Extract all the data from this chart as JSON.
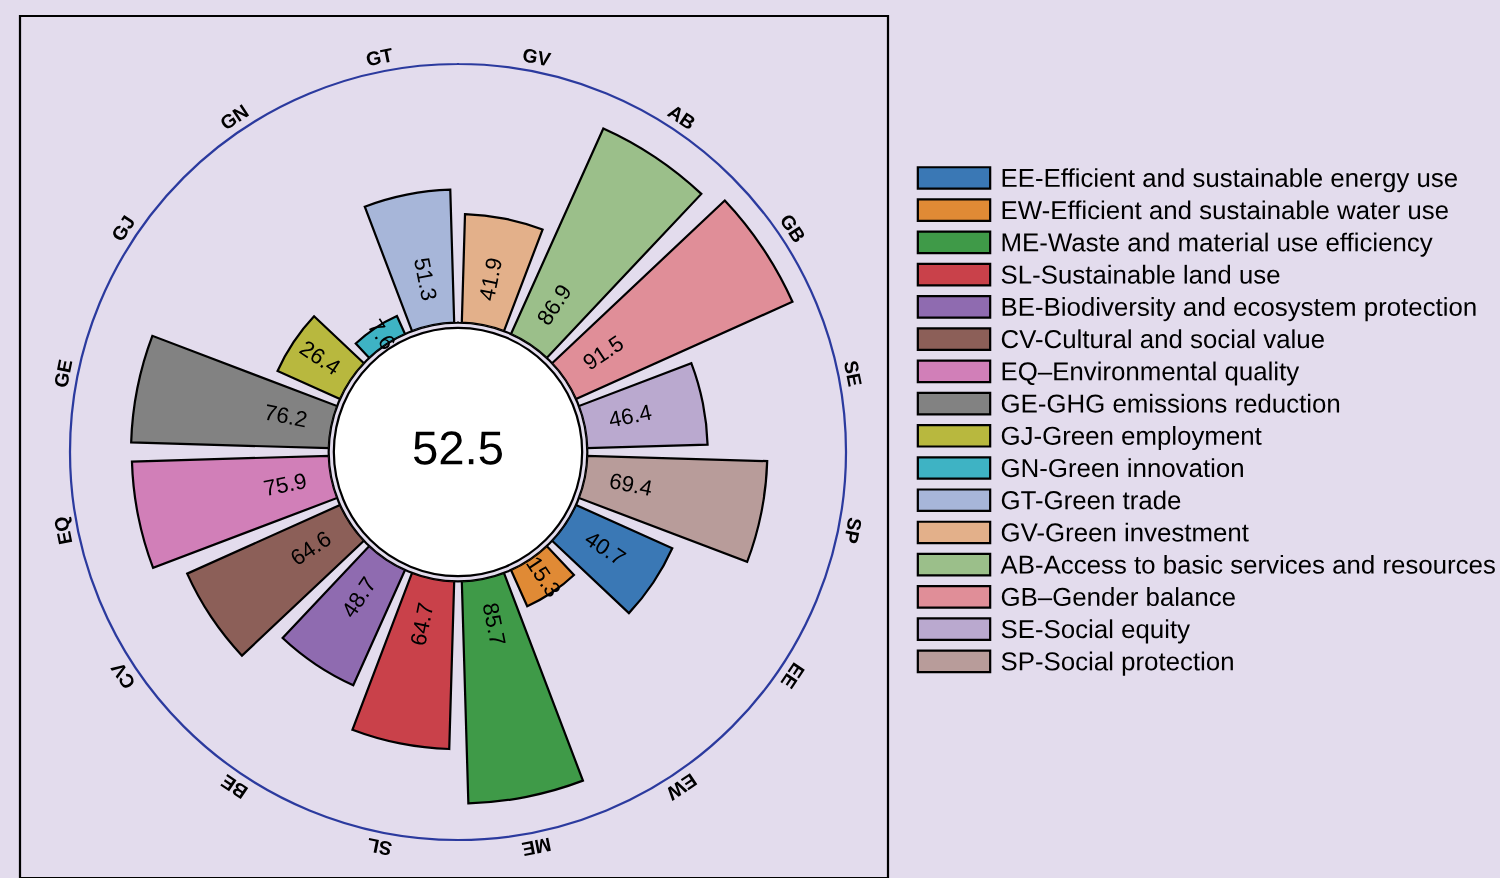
{
  "chart_data": {
    "type": "other",
    "categories": [
      "EE",
      "EW",
      "ME",
      "SL",
      "BE",
      "CV",
      "EQ",
      "GE",
      "GJ",
      "GN",
      "GT",
      "GV",
      "AB",
      "GB",
      "SE",
      "SP"
    ],
    "series": [
      {
        "name": "EE-Efficient and sustainable energy use",
        "color": "#3a78b5",
        "values": [
          40.7,
          null,
          null,
          null,
          null,
          null,
          null,
          null,
          null,
          null,
          null,
          null,
          null,
          null,
          null,
          null
        ]
      },
      {
        "name": "EW-Efficient and sustainable water use",
        "color": "#e08a35",
        "values": [
          null,
          15.3,
          null,
          null,
          null,
          null,
          null,
          null,
          null,
          null,
          null,
          null,
          null,
          null,
          null,
          null
        ]
      },
      {
        "name": "ME-Waste and material use efficiency",
        "color": "#3f9a48",
        "values": [
          null,
          null,
          85.7,
          null,
          null,
          null,
          null,
          null,
          null,
          null,
          null,
          null,
          null,
          null,
          null,
          null
        ]
      },
      {
        "name": "SL-Sustainable land use",
        "color": "#c9414a",
        "values": [
          null,
          null,
          null,
          64.7,
          null,
          null,
          null,
          null,
          null,
          null,
          null,
          null,
          null,
          null,
          null,
          null
        ]
      },
      {
        "name": "BE-Biodiversity and ecosystem protection",
        "color": "#8f6bb0",
        "values": [
          null,
          null,
          null,
          null,
          48.7,
          null,
          null,
          null,
          null,
          null,
          null,
          null,
          null,
          null,
          null,
          null
        ]
      },
      {
        "name": "CV-Cultural and social value",
        "color": "#8c5f58",
        "values": [
          null,
          null,
          null,
          null,
          null,
          64.6,
          null,
          null,
          null,
          null,
          null,
          null,
          null,
          null,
          null,
          null
        ]
      },
      {
        "name": "EQ–Environmental quality",
        "color": "#d17fb8",
        "values": [
          null,
          null,
          null,
          null,
          null,
          null,
          75.9,
          null,
          null,
          null,
          null,
          null,
          null,
          null,
          null,
          null
        ]
      },
      {
        "name": "GE-GHG emissions reduction",
        "color": "#828282",
        "values": [
          null,
          null,
          null,
          null,
          null,
          null,
          null,
          76.2,
          null,
          null,
          null,
          null,
          null,
          null,
          null,
          null
        ]
      },
      {
        "name": "GJ-Green employment",
        "color": "#b8b83e",
        "values": [
          null,
          null,
          null,
          null,
          null,
          null,
          null,
          null,
          26.4,
          null,
          null,
          null,
          null,
          null,
          null,
          null
        ]
      },
      {
        "name": "GN-Green innovation",
        "color": "#3eb3c4",
        "values": [
          null,
          null,
          null,
          null,
          null,
          null,
          null,
          null,
          null,
          7.6,
          null,
          null,
          null,
          null,
          null,
          null
        ]
      },
      {
        "name": "GT-Green trade",
        "color": "#a7b6d9",
        "values": [
          null,
          null,
          null,
          null,
          null,
          null,
          null,
          null,
          null,
          null,
          51.3,
          null,
          null,
          null,
          null,
          null
        ]
      },
      {
        "name": "GV-Green investment",
        "color": "#e3b08a",
        "values": [
          null,
          null,
          null,
          null,
          null,
          null,
          null,
          null,
          null,
          null,
          null,
          41.9,
          null,
          null,
          null,
          null
        ]
      },
      {
        "name": "AB-Access to basic services and resources",
        "color": "#9bbf8a",
        "values": [
          null,
          null,
          null,
          null,
          null,
          null,
          null,
          null,
          null,
          null,
          null,
          null,
          86.9,
          null,
          null,
          null
        ]
      },
      {
        "name": "GB–Gender balance",
        "color": "#e08e98",
        "values": [
          null,
          null,
          null,
          null,
          null,
          null,
          null,
          null,
          null,
          null,
          null,
          null,
          null,
          91.5,
          null,
          null
        ]
      },
      {
        "name": "SE-Social equity",
        "color": "#baa9cf",
        "values": [
          null,
          null,
          null,
          null,
          null,
          null,
          null,
          null,
          null,
          null,
          null,
          null,
          null,
          null,
          46.4,
          null
        ]
      },
      {
        "name": "SP-Social protection",
        "color": "#b89c9a",
        "values": [
          null,
          null,
          null,
          null,
          null,
          null,
          null,
          null,
          null,
          null,
          null,
          null,
          null,
          null,
          null,
          69.4
        ]
      }
    ],
    "data_labels": true,
    "legend": "right",
    "annotations": [
      "52.5"
    ]
  }
}
